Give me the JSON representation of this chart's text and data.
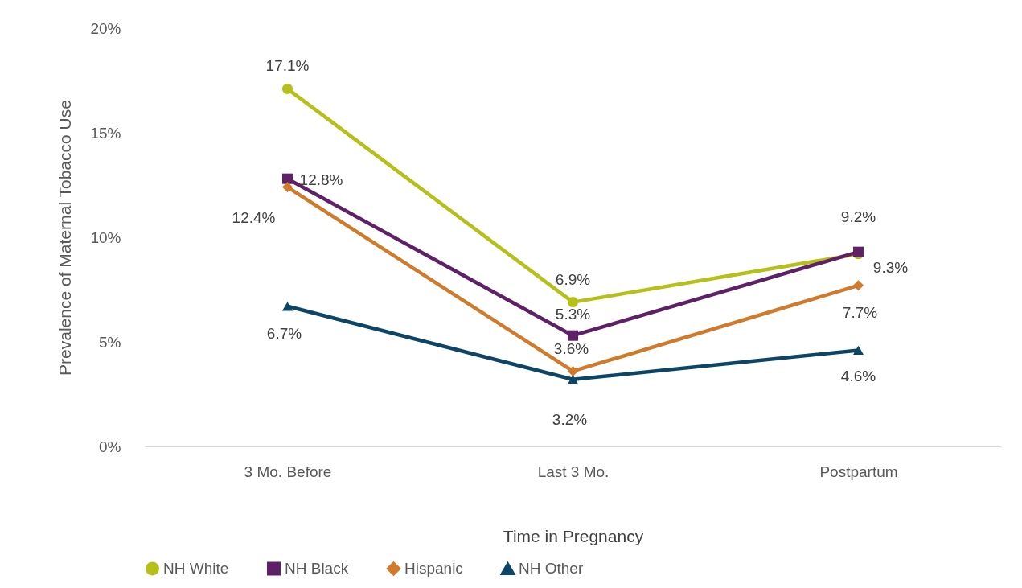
{
  "chart_data": {
    "type": "line",
    "xlabel": "Time in Pregnancy",
    "ylabel": "Prevalence of Maternal Tobacco Use",
    "categories": [
      "3 Mo. Before",
      "Last 3 Mo.",
      "Postpartum"
    ],
    "series": [
      {
        "name": "NH White",
        "color": "#b5c11a",
        "marker": "circle",
        "values": [
          17.1,
          6.9,
          9.2
        ],
        "value_labels": [
          "17.1%",
          "6.9%",
          "9.2%"
        ]
      },
      {
        "name": "NH Black",
        "color": "#5e2167",
        "marker": "square",
        "values": [
          12.8,
          5.3,
          9.3
        ],
        "value_labels": [
          "12.8%",
          "5.3%",
          "9.3%"
        ]
      },
      {
        "name": "Hispanic",
        "color": "#d07a2c",
        "marker": "diamond",
        "values": [
          12.4,
          3.6,
          7.7
        ],
        "value_labels": [
          "12.4%",
          "3.6%",
          "7.7%"
        ]
      },
      {
        "name": "NH Other",
        "color": "#0c4566",
        "marker": "triangle",
        "values": [
          6.7,
          3.2,
          4.6
        ],
        "value_labels": [
          "6.7%",
          "3.2%",
          "4.6%"
        ]
      }
    ],
    "ylim": [
      0,
      20
    ],
    "yticks": [
      {
        "value": 0,
        "label": "0%"
      },
      {
        "value": 5,
        "label": "5%"
      },
      {
        "value": 10,
        "label": "10%"
      },
      {
        "value": 15,
        "label": "15%"
      },
      {
        "value": 20,
        "label": "20%"
      }
    ],
    "grid": false,
    "legend": "bottom",
    "line_style": "solid"
  }
}
